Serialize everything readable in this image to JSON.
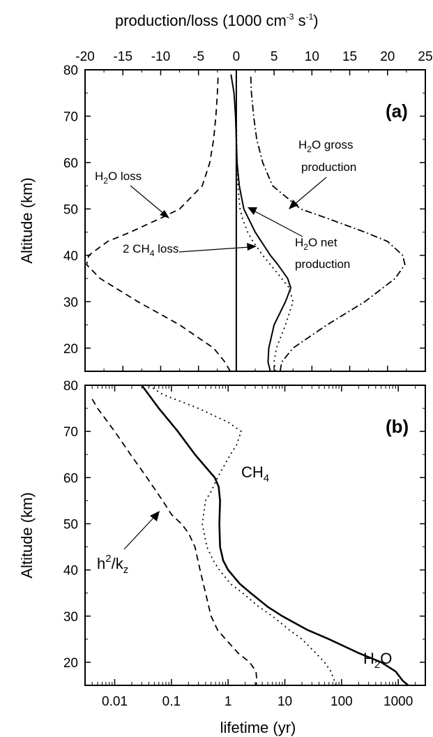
{
  "chart_data": [
    {
      "panel": "(a)",
      "type": "line",
      "xlabel": "production/loss (1000 cm-3 s-1)",
      "ylabel": "Altitude (km)",
      "xlim": [
        -20,
        25
      ],
      "ylim": [
        15,
        80
      ],
      "x_ticks": [
        -20,
        -15,
        -10,
        -5,
        0,
        5,
        10,
        15,
        20,
        25
      ],
      "y_ticks": [
        20,
        30,
        40,
        50,
        60,
        70,
        80
      ],
      "x_axis_position": "top",
      "series": [
        {
          "name": "H2O loss",
          "style": "dashed",
          "y": [
            15,
            17,
            20,
            25,
            30,
            35,
            38,
            40,
            43,
            45,
            48,
            50,
            55,
            60,
            65,
            70,
            75,
            79
          ],
          "x": [
            -0.8,
            -1.5,
            -3,
            -7.5,
            -13,
            -18,
            -19.8,
            -19.5,
            -17,
            -14,
            -10,
            -7.5,
            -4.5,
            -3.5,
            -3,
            -2.7,
            -2.5,
            -2.4
          ]
        },
        {
          "name": "H2O gross production",
          "style": "dashdot",
          "y": [
            15,
            17,
            20,
            25,
            30,
            35,
            38,
            40,
            43,
            45,
            48,
            50,
            55,
            60,
            65,
            70,
            75,
            79
          ],
          "x": [
            5.8,
            6.0,
            7.5,
            12,
            17,
            21,
            22.3,
            22,
            20,
            17,
            12,
            8.5,
            4.8,
            3.5,
            2.7,
            2.3,
            2.0,
            1.9
          ]
        },
        {
          "name": "H2O net production",
          "style": "solid",
          "y": [
            15,
            17,
            20,
            25,
            30,
            33,
            35,
            38,
            40,
            43,
            45,
            48,
            50,
            55,
            60,
            65,
            70,
            75,
            79
          ],
          "x": [
            4.5,
            4.2,
            4.3,
            5.0,
            6.5,
            7.2,
            6.8,
            5.5,
            4.5,
            3.3,
            2.5,
            1.6,
            1.0,
            0.4,
            0.1,
            0,
            -0.1,
            -0.3,
            -0.7
          ]
        },
        {
          "name": "2 CH4 loss",
          "style": "dotted",
          "y": [
            15,
            17,
            20,
            25,
            30,
            33,
            35,
            38,
            40,
            43,
            45,
            48,
            50,
            55,
            60,
            65,
            70,
            75,
            79
          ],
          "x": [
            5.2,
            5.0,
            5.3,
            6.5,
            7.5,
            7.0,
            6.0,
            4.5,
            3.5,
            2.2,
            1.5,
            0.8,
            0.5,
            0.2,
            0.1,
            0.05,
            0,
            0,
            0
          ]
        }
      ],
      "annotations": [
        {
          "text": "H",
          "sub": "2",
          "rest": "O loss"
        },
        {
          "text": "H",
          "sub": "2",
          "rest": "O gross",
          "line2": "production"
        },
        {
          "text": "2 CH",
          "sub": "4",
          "rest": " loss"
        },
        {
          "text": "H",
          "sub": "2",
          "rest": "O net",
          "line2": "production"
        }
      ]
    },
    {
      "panel": "(b)",
      "type": "line",
      "xlabel": "lifetime (yr)",
      "ylabel": "Altitude (km)",
      "xscale": "log",
      "xlim": [
        0.003,
        3000
      ],
      "ylim": [
        15,
        80
      ],
      "x_ticks": [
        0.01,
        0.1,
        1,
        10,
        100,
        1000
      ],
      "x_tick_labels": [
        "0.01",
        "0.1",
        "1",
        "10",
        "100",
        "1000"
      ],
      "y_ticks": [
        20,
        30,
        40,
        50,
        60,
        70,
        80
      ],
      "series": [
        {
          "name": "H2O",
          "style": "solid",
          "y": [
            80,
            75,
            70,
            65,
            62,
            60,
            58,
            55,
            50,
            45,
            42,
            40,
            37,
            35,
            32,
            30,
            27,
            25,
            22,
            20,
            18,
            16,
            15
          ],
          "x": [
            0.03,
            0.06,
            0.13,
            0.26,
            0.42,
            0.58,
            0.68,
            0.72,
            0.7,
            0.72,
            0.82,
            1,
            1.6,
            2.5,
            5,
            9,
            25,
            60,
            200,
            500,
            900,
            1200,
            1500
          ]
        },
        {
          "name": "CH4",
          "style": "dotted",
          "y": [
            80,
            78,
            75,
            72,
            70,
            67,
            65,
            62,
            60,
            57,
            55,
            50,
            45,
            42,
            40,
            37,
            35,
            32,
            30,
            27,
            25,
            22,
            20,
            18,
            16,
            15
          ],
          "x": [
            0.04,
            0.07,
            0.3,
            1.0,
            1.7,
            1.4,
            1.1,
            0.8,
            0.65,
            0.5,
            0.4,
            0.35,
            0.42,
            0.55,
            0.7,
            1.1,
            1.8,
            3.5,
            6,
            12,
            20,
            35,
            50,
            65,
            75,
            80
          ]
        },
        {
          "name": "h2/kz",
          "style": "dashed",
          "y": [
            77,
            75,
            70,
            65,
            60,
            55,
            52,
            50,
            48,
            45,
            40,
            35,
            30,
            27,
            25,
            22,
            20,
            18,
            16,
            15
          ],
          "x": [
            0.004,
            0.005,
            0.01,
            0.019,
            0.037,
            0.07,
            0.1,
            0.15,
            0.2,
            0.26,
            0.32,
            0.4,
            0.5,
            0.65,
            0.9,
            1.5,
            2.4,
            3.1,
            3.2,
            3.1
          ]
        }
      ],
      "annotations": [
        {
          "text": "CH",
          "sub": "4"
        },
        {
          "text": "h",
          "sup": "2",
          "rest": "/k",
          "sub": "z"
        },
        {
          "text": "H",
          "sub": "2",
          "rest": "O"
        }
      ]
    }
  ],
  "top_label": {
    "text": "production/loss (1000 cm",
    "sup1": "-3",
    "mid": " s",
    "sup2": "-1",
    "end": ")"
  },
  "ylabel_a": "Altitude (km)",
  "ylabel_b": "Altitude (km)",
  "xlabel_b": "lifetime (yr)",
  "panel_a_label": "(a)",
  "panel_b_label": "(b)"
}
